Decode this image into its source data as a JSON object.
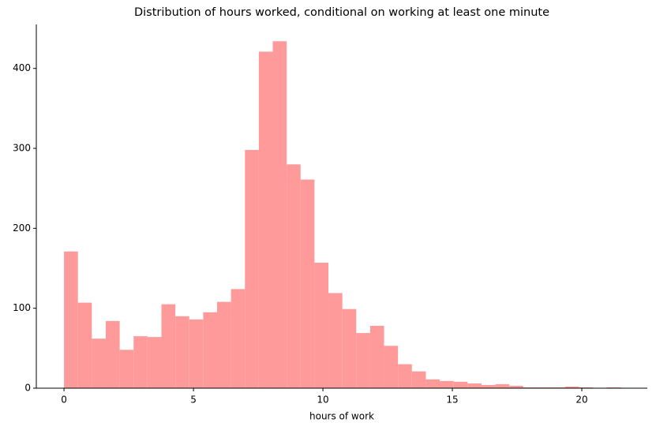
{
  "chart_data": {
    "type": "histogram",
    "title": "Distribution of hours worked, conditional on working at least one minute",
    "x_label": "hours of work",
    "bins": [
      0,
      0.5375,
      1.075,
      1.6125,
      2.15,
      2.6875,
      3.225,
      3.7625,
      4.3,
      4.8375,
      5.375,
      5.9125,
      6.45,
      6.9875,
      7.525,
      8.0625,
      8.6,
      9.1375,
      9.675,
      10.2125,
      10.75,
      11.2875,
      11.825,
      12.3625,
      12.9,
      13.4375,
      13.975,
      14.5125,
      15.05,
      15.5875,
      16.125,
      16.6625,
      17.2,
      17.7375,
      18.275,
      18.8125,
      19.35,
      19.8875,
      20.425,
      20.9625,
      21.5
    ],
    "values": [
      171,
      107,
      62,
      84,
      48,
      65,
      64,
      105,
      90,
      86,
      95,
      108,
      124,
      298,
      421,
      434,
      280,
      261,
      157,
      119,
      99,
      69,
      78,
      53,
      30,
      21,
      11,
      9,
      8,
      6,
      4,
      5,
      3,
      1,
      1,
      1,
      2,
      1,
      0,
      1
    ],
    "color": "#ff9a9a",
    "xlim": [
      -1.07,
      22.53
    ],
    "xticks": [
      0,
      5,
      10,
      15,
      20
    ],
    "ylim": [
      0,
      455
    ],
    "yticks": [
      0,
      100,
      200,
      300,
      400
    ],
    "grid": false
  }
}
